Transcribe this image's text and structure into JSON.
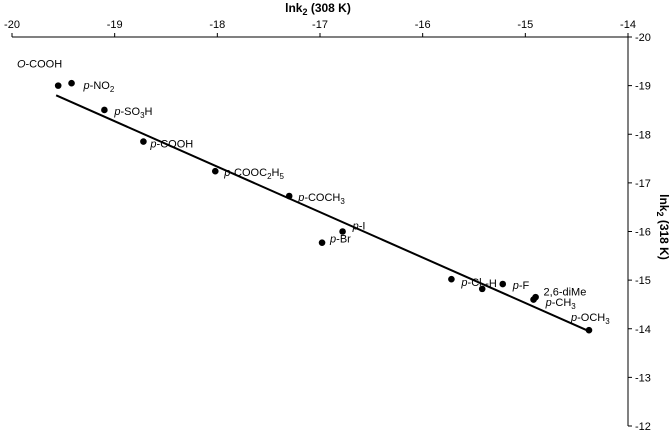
{
  "chart_data": {
    "type": "scatter",
    "x_axis": {
      "title_main": "lnk",
      "title_sub": "2",
      "title_rest": " (308 K)",
      "position": "top",
      "range": [
        -20,
        -14
      ],
      "ticks": [
        -20,
        -19,
        -18,
        -17,
        -16,
        -15,
        -14
      ],
      "tick_labels": [
        "-20",
        "-19",
        "-18",
        "-17",
        "-16",
        "-15",
        "-14"
      ]
    },
    "y_axis": {
      "title_main": "lnk",
      "title_sub": "2",
      "title_rest": " (318 K)",
      "position": "right",
      "range": [
        -20,
        -12
      ],
      "ticks": [
        -12,
        -13,
        -14,
        -15,
        -16,
        -17,
        -18,
        -19,
        -20
      ],
      "tick_labels": [
        "-12",
        "-13",
        "-14",
        "-15",
        "-16",
        "-17",
        "-18",
        "-19",
        "-20"
      ]
    },
    "grid": false,
    "legend": "none",
    "colors": {
      "marker": "#000000",
      "line": "#000000",
      "axis": "#000000"
    },
    "points": [
      {
        "x": -14.38,
        "y": -13.97,
        "label_parts": [
          {
            "t": "p",
            "i": true
          },
          {
            "t": "-OCH"
          },
          {
            "t": "3",
            "sub": true
          }
        ],
        "anchor": "start",
        "dx": -18,
        "dy": -9
      },
      {
        "x": -14.92,
        "y": -14.6,
        "label_parts": [
          {
            "t": "2,6-diMe"
          }
        ],
        "anchor": "start",
        "dx": 10,
        "dy": -4
      },
      {
        "x": -14.9,
        "y": -14.65,
        "label_parts": [
          {
            "t": "p",
            "i": true
          },
          {
            "t": "-CH"
          },
          {
            "t": "3",
            "sub": true
          }
        ],
        "anchor": "start",
        "dx": 10,
        "dy": 9
      },
      {
        "x": -15.22,
        "y": -14.92,
        "label_parts": [
          {
            "t": "p",
            "i": true
          },
          {
            "t": "-F"
          }
        ],
        "anchor": "start",
        "dx": 10,
        "dy": 5
      },
      {
        "x": -15.42,
        "y": -14.82,
        "label_parts": [
          {
            "t": "-H"
          }
        ],
        "anchor": "start",
        "dx": 3,
        "dy": -2
      },
      {
        "x": -15.72,
        "y": -15.02,
        "label_parts": [
          {
            "t": "p",
            "i": true
          },
          {
            "t": "-Cl"
          }
        ],
        "anchor": "start",
        "dx": 10,
        "dy": 7
      },
      {
        "x": -16.98,
        "y": -15.77,
        "label_parts": [
          {
            "t": "p",
            "i": true
          },
          {
            "t": "-Br"
          }
        ],
        "anchor": "start",
        "dx": 8,
        "dy": 0
      },
      {
        "x": -16.78,
        "y": -16.0,
        "label_parts": [
          {
            "t": "p",
            "i": true
          },
          {
            "t": "-I"
          }
        ],
        "anchor": "start",
        "dx": 10,
        "dy": -2
      },
      {
        "x": -17.3,
        "y": -16.73,
        "label_parts": [
          {
            "t": "p",
            "i": true
          },
          {
            "t": "-COCH"
          },
          {
            "t": "3",
            "sub": true
          }
        ],
        "anchor": "start",
        "dx": 9,
        "dy": 5
      },
      {
        "x": -18.02,
        "y": -17.24,
        "label_parts": [
          {
            "t": "p",
            "i": true
          },
          {
            "t": "-COOC"
          },
          {
            "t": "2",
            "sub": true
          },
          {
            "t": "H"
          },
          {
            "t": "5",
            "sub": true
          }
        ],
        "anchor": "start",
        "dx": 9,
        "dy": 5
      },
      {
        "x": -18.72,
        "y": -17.85,
        "label_parts": [
          {
            "t": "p",
            "i": true
          },
          {
            "t": "-COOH"
          }
        ],
        "anchor": "start",
        "dx": 7,
        "dy": 6
      },
      {
        "x": -19.1,
        "y": -18.5,
        "label_parts": [
          {
            "t": "p",
            "i": true
          },
          {
            "t": "-SO"
          },
          {
            "t": "3",
            "sub": true
          },
          {
            "t": "H"
          }
        ],
        "anchor": "start",
        "dx": 10,
        "dy": 5
      },
      {
        "x": -19.55,
        "y": -19.0,
        "label_parts": [
          {
            "t": "O",
            "i": true
          },
          {
            "t": "-COOH"
          }
        ],
        "anchor": "end",
        "dx": 4,
        "dy": -18
      },
      {
        "x": -19.42,
        "y": -19.05,
        "label_parts": [
          {
            "t": "p",
            "i": true
          },
          {
            "t": "-NO"
          },
          {
            "t": "2",
            "sub": true
          }
        ],
        "anchor": "start",
        "dx": 12,
        "dy": 6
      }
    ],
    "trendline": {
      "x": [
        -19.57,
        -14.38
      ],
      "y": [
        -18.8,
        -13.95
      ]
    }
  }
}
